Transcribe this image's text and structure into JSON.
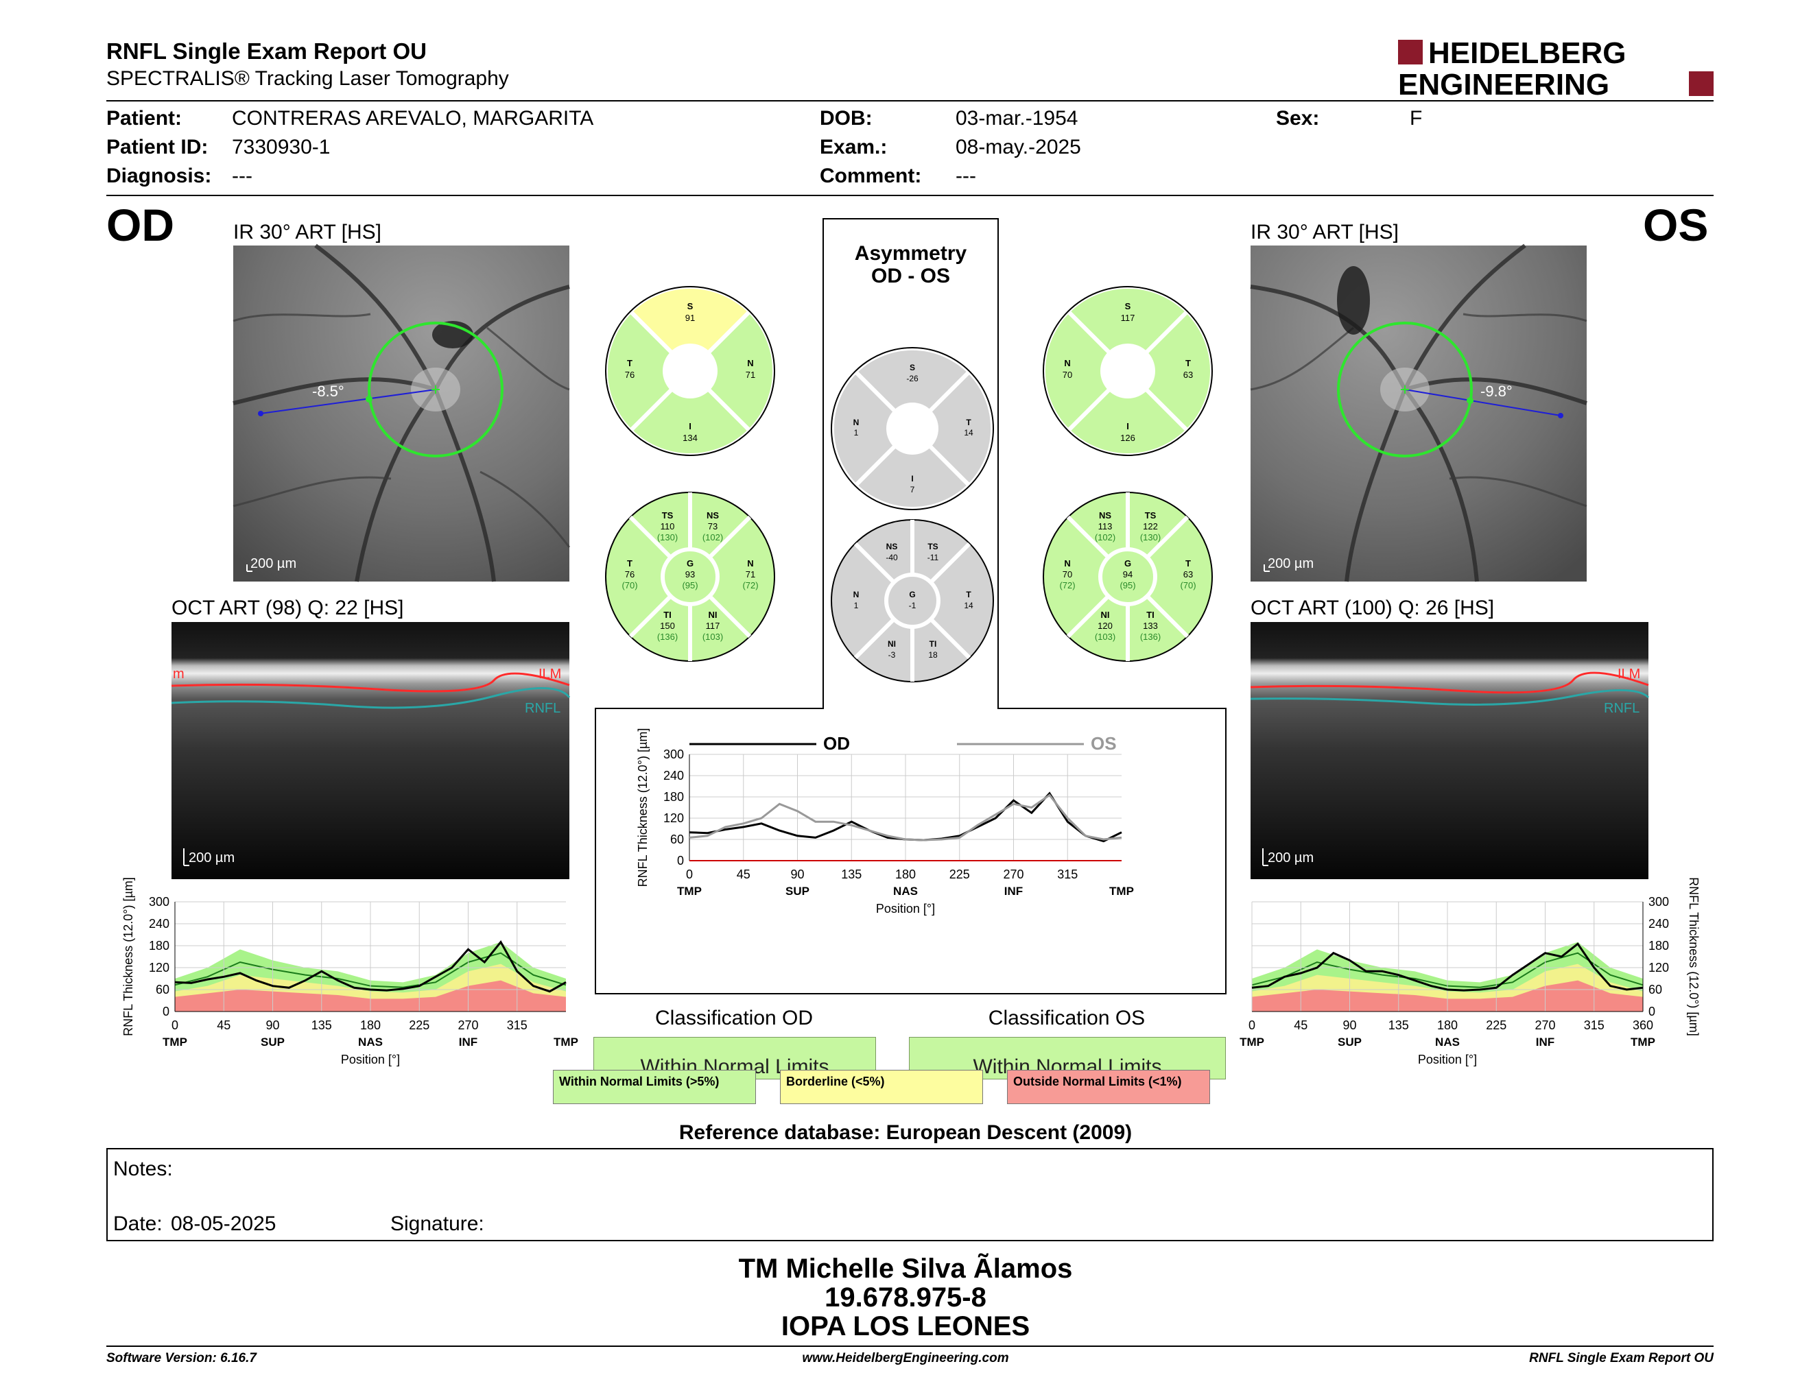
{
  "report": {
    "title": "RNFL Single Exam Report OU",
    "subtitle": "SPECTRALIS® Tracking Laser Tomography",
    "logo_line1": "HEIDELBERG",
    "logo_line2": "ENGINEERING"
  },
  "patient": {
    "name_label": "Patient:",
    "name": "CONTRERAS AREVALO, MARGARITA",
    "id_label": "Patient ID:",
    "id": "7330930-1",
    "diagnosis_label": "Diagnosis:",
    "diagnosis": "---",
    "dob_label": "DOB:",
    "dob": "03-mar.-1954",
    "exam_label": "Exam.:",
    "exam": "08-may.-2025",
    "comment_label": "Comment:",
    "comment": "---",
    "sex_label": "Sex:",
    "sex": "F"
  },
  "od": {
    "eye": "OD",
    "ir_label": "IR 30° ART [HS]",
    "angle": "-8.5°",
    "ir_scale": "200 µm",
    "oct_label": "OCT ART (98) Q: 22 [HS]",
    "oct_scale": "200 µm",
    "ilm": "ILM",
    "ilm_left": "m",
    "rnfl": "RNFL",
    "sectors6": {
      "S": "91",
      "N": "71",
      "I": "134",
      "T": "76"
    },
    "sectors6_labels": {
      "S": "S",
      "N": "N",
      "I": "I",
      "T": "T"
    },
    "sectors_full": {
      "TS": {
        "label": "TS",
        "v": "110",
        "n": "(130)"
      },
      "NS": {
        "label": "NS",
        "v": "73",
        "n": "(102)"
      },
      "T": {
        "label": "T",
        "v": "76",
        "n": "(70)"
      },
      "G": {
        "label": "G",
        "v": "93",
        "n": "(95)"
      },
      "N": {
        "label": "N",
        "v": "71",
        "n": "(72)"
      },
      "TI": {
        "label": "TI",
        "v": "150",
        "n": "(136)"
      },
      "NI": {
        "label": "NI",
        "v": "117",
        "n": "(103)"
      }
    },
    "classification_title": "Classification OD",
    "classification": "Within Normal Limits"
  },
  "os": {
    "eye": "OS",
    "ir_label": "IR 30° ART [HS]",
    "angle": "-9.8°",
    "ir_scale": "200 µm",
    "oct_label": "OCT ART (100) Q: 26 [HS]",
    "oct_scale": "200 µm",
    "ilm": "ILM",
    "rnfl": "RNFL",
    "sectors6": {
      "S": "117",
      "N": "70",
      "I": "126",
      "T": "63"
    },
    "sectors6_labels": {
      "S": "S",
      "N": "N",
      "I": "I",
      "T": "T"
    },
    "sectors_full": {
      "NS": {
        "label": "NS",
        "v": "113",
        "n": "(102)"
      },
      "TS": {
        "label": "TS",
        "v": "122",
        "n": "(130)"
      },
      "N": {
        "label": "N",
        "v": "70",
        "n": "(72)"
      },
      "G": {
        "label": "G",
        "v": "94",
        "n": "(95)"
      },
      "T": {
        "label": "T",
        "v": "63",
        "n": "(70)"
      },
      "NI": {
        "label": "NI",
        "v": "120",
        "n": "(103)"
      },
      "TI": {
        "label": "TI",
        "v": "133",
        "n": "(136)"
      }
    },
    "classification_title": "Classification OS",
    "classification": "Within Normal Limits"
  },
  "asymmetry": {
    "title1": "Asymmetry",
    "title2": "OD - OS",
    "sectors6": {
      "S": "-26",
      "N": "1",
      "T": "14",
      "I": "7"
    },
    "sectors6_labels": {
      "S": "S",
      "N": "N",
      "T": "T",
      "I": "I"
    },
    "sectors_full": {
      "NS": {
        "label": "NS",
        "v": "-40"
      },
      "TS": {
        "label": "TS",
        "v": "-11"
      },
      "N": {
        "label": "N",
        "v": "1"
      },
      "G": {
        "label": "G",
        "v": "-1"
      },
      "T": {
        "label": "T",
        "v": "14"
      },
      "NI": {
        "label": "NI",
        "v": "-3"
      },
      "TI": {
        "label": "TI",
        "v": "18"
      }
    }
  },
  "chart_data": [
    {
      "type": "line",
      "title": "",
      "legend": [
        "OD",
        "OS"
      ],
      "ylabel": "RNFL Thickness (12.0°) [µm]",
      "xlabel": "Position [°]",
      "ylim": [
        0,
        300
      ],
      "xlim": [
        0,
        360
      ],
      "yticks": [
        "0",
        "60",
        "120",
        "180",
        "240",
        "300"
      ],
      "xticks": [
        "0",
        "45",
        "90",
        "135",
        "180",
        "225",
        "270",
        "315"
      ],
      "region_labels": [
        "TMP",
        "SUP",
        "NAS",
        "INF",
        "TMP"
      ],
      "series": [
        {
          "name": "OD",
          "color": "#000000",
          "x": [
            0,
            15,
            30,
            45,
            60,
            75,
            90,
            105,
            120,
            135,
            150,
            165,
            180,
            195,
            210,
            225,
            240,
            255,
            270,
            285,
            300,
            315,
            330,
            345,
            360
          ],
          "y": [
            80,
            78,
            88,
            95,
            105,
            85,
            70,
            65,
            85,
            110,
            85,
            65,
            60,
            58,
            62,
            70,
            95,
            120,
            170,
            135,
            190,
            110,
            70,
            55,
            80
          ]
        },
        {
          "name": "OS",
          "color": "#999999",
          "x": [
            0,
            15,
            30,
            45,
            60,
            75,
            90,
            105,
            120,
            135,
            150,
            165,
            180,
            195,
            210,
            225,
            240,
            255,
            270,
            285,
            300,
            315,
            330,
            345,
            360
          ],
          "y": [
            65,
            70,
            95,
            105,
            120,
            160,
            140,
            110,
            110,
            100,
            85,
            70,
            60,
            58,
            60,
            65,
            100,
            130,
            160,
            150,
            185,
            120,
            70,
            60,
            65
          ]
        }
      ]
    },
    {
      "type": "line",
      "title": "",
      "ylabel": "RNFL Thickness (12.0°) [µm]",
      "xlabel": "Position [°]",
      "ylim": [
        0,
        300
      ],
      "xlim": [
        0,
        360
      ],
      "yticks": [
        "0",
        "60",
        "120",
        "180",
        "240",
        "300"
      ],
      "xticks": [
        "0",
        "45",
        "90",
        "135",
        "180",
        "225",
        "270",
        "315"
      ],
      "region_labels": [
        "TMP",
        "SUP",
        "NAS",
        "INF",
        "TMP"
      ],
      "series": [
        {
          "name": "OD",
          "x": [
            0,
            15,
            30,
            45,
            60,
            75,
            90,
            105,
            120,
            135,
            150,
            165,
            180,
            195,
            210,
            225,
            240,
            255,
            270,
            285,
            300,
            315,
            330,
            345,
            360
          ],
          "y": [
            80,
            78,
            88,
            95,
            105,
            85,
            70,
            65,
            85,
            110,
            85,
            65,
            60,
            58,
            62,
            70,
            95,
            120,
            170,
            135,
            190,
            110,
            70,
            55,
            80
          ]
        }
      ]
    },
    {
      "type": "line",
      "title": "",
      "ylabel": "RNFL Thickness (12.0°) [µm]",
      "xlabel": "Position [°]",
      "ylim": [
        0,
        300
      ],
      "xlim": [
        0,
        360
      ],
      "yticks": [
        "0",
        "60",
        "120",
        "180",
        "240",
        "300"
      ],
      "xticks": [
        "0",
        "45",
        "90",
        "135",
        "180",
        "225",
        "270",
        "315",
        "360"
      ],
      "region_labels": [
        "TMP",
        "SUP",
        "NAS",
        "INF",
        "TMP"
      ],
      "series": [
        {
          "name": "OS",
          "x": [
            0,
            15,
            30,
            45,
            60,
            75,
            90,
            105,
            120,
            135,
            150,
            165,
            180,
            195,
            210,
            225,
            240,
            255,
            270,
            285,
            300,
            315,
            330,
            345,
            360
          ],
          "y": [
            65,
            70,
            95,
            105,
            120,
            160,
            140,
            110,
            110,
            100,
            85,
            70,
            60,
            58,
            60,
            65,
            100,
            130,
            160,
            150,
            185,
            120,
            70,
            60,
            65
          ]
        }
      ]
    }
  ],
  "legend": {
    "wnl": "Within Normal Limits (>5%)",
    "borderline": "Borderline (<5%)",
    "onl": "Outside Normal Limits (<1%)",
    "colors": {
      "wnl": "#c6f7a0",
      "borderline": "#fdfd9f",
      "onl": "#f79b96",
      "gray": "#d3d3d3"
    }
  },
  "reference_db": "Reference database: European Descent (2009)",
  "notes": {
    "notes_label": "Notes:",
    "date_label": "Date:",
    "date": "08-05-2025",
    "signature_label": "Signature:"
  },
  "signer": {
    "name": "TM Michelle Silva Ãlamos",
    "rut": "19.678.975-8",
    "org": "IOPA LOS LEONES"
  },
  "footer": {
    "software": "Software Version: 6.16.7",
    "url": "www.HeidelbergEngineering.com",
    "report": "RNFL Single Exam Report OU"
  }
}
